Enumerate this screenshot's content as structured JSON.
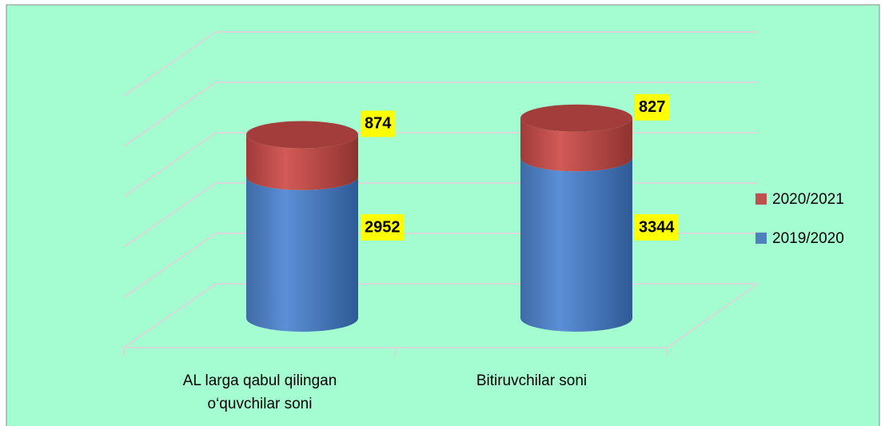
{
  "chart_data": {
    "type": "bar3d_stacked",
    "categories": [
      "AL larga qabul qilingan o‘quvchilar soni",
      "Bitiruvchilar  soni"
    ],
    "series": [
      {
        "name": "2019/2020",
        "color": "#4f81bd",
        "values": [
          2952,
          3344
        ]
      },
      {
        "name": "2020/2021",
        "color": "#c0504d",
        "values": [
          874,
          827
        ]
      }
    ],
    "ylim": [
      0,
      5000
    ],
    "yticks": [
      0,
      1000,
      2000,
      3000,
      4000,
      5000
    ],
    "grid": true,
    "legend": "right"
  }
}
